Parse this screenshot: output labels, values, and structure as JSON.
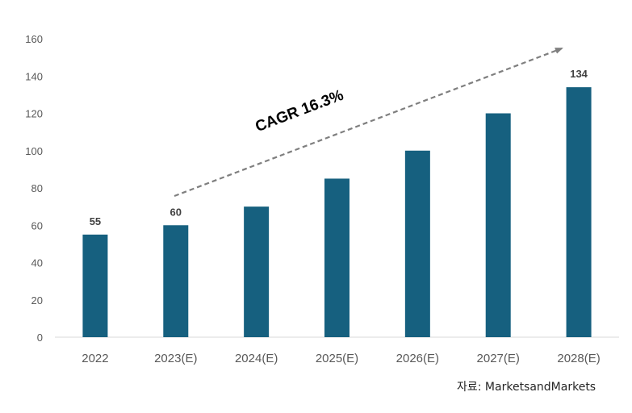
{
  "chart_data": {
    "type": "bar",
    "categories": [
      "2022",
      "2023(E)",
      "2024(E)",
      "2025(E)",
      "2026(E)",
      "2027(E)",
      "2028(E)"
    ],
    "values": [
      55,
      60,
      70,
      85,
      100,
      120,
      134
    ],
    "data_labels": {
      "2022": "55",
      "2023(E)": "60",
      "2028(E)": "134"
    },
    "ylim": [
      0,
      160
    ],
    "yticks": [
      0,
      20,
      40,
      60,
      80,
      100,
      120,
      140,
      160
    ],
    "bar_color": "#16607f",
    "gridlines": false,
    "annotation": {
      "text": "CAGR 16.3%",
      "style": "dashed arrow",
      "color": "#7f7f7f"
    }
  },
  "source": "자료: MarketsandMarkets"
}
